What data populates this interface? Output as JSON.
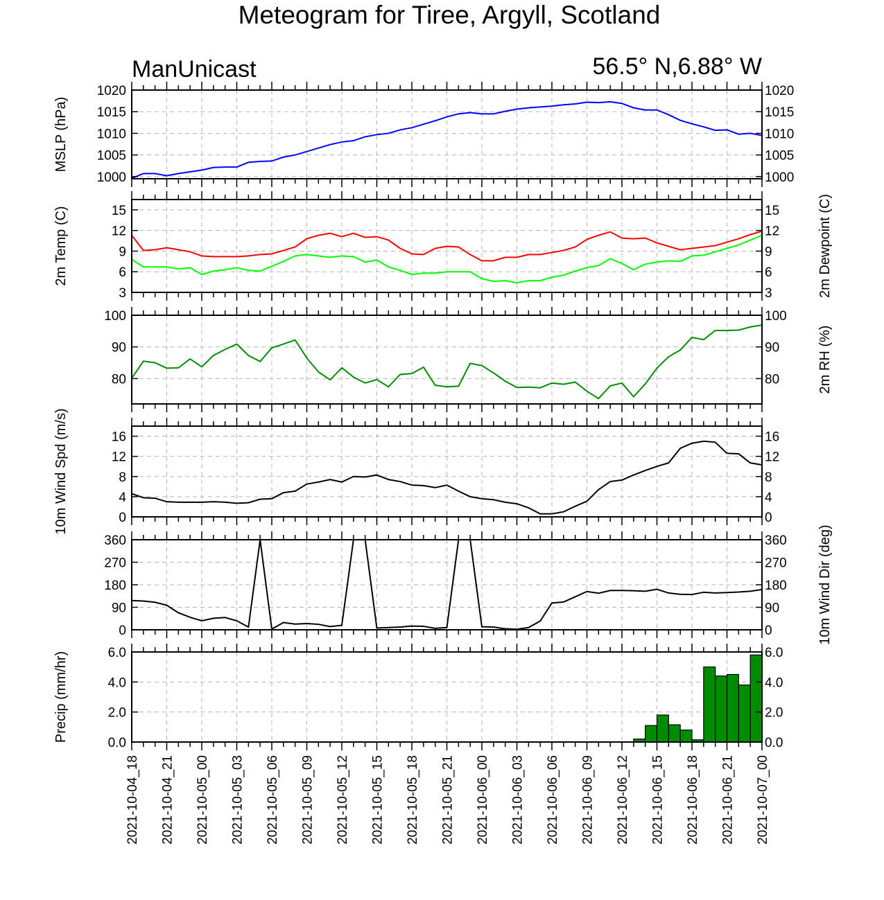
{
  "title": "Meteogram for Tiree, Argyll, Scotland",
  "model": "ManUnicast",
  "location": "56.5° N,6.88° W",
  "colors": {
    "mslp": "#0000ff",
    "temp": "#ff0000",
    "dewpoint": "#00ff00",
    "rh": "#008c00",
    "wind": "#000000",
    "precip": "#008c00"
  },
  "chart_data": {
    "type": "line",
    "x": [
      "2021-10-04_18",
      "2021-10-04_19",
      "2021-10-04_20",
      "2021-10-04_21",
      "2021-10-04_22",
      "2021-10-04_23",
      "2021-10-05_00",
      "2021-10-05_01",
      "2021-10-05_02",
      "2021-10-05_03",
      "2021-10-05_04",
      "2021-10-05_05",
      "2021-10-05_06",
      "2021-10-05_07",
      "2021-10-05_08",
      "2021-10-05_09",
      "2021-10-05_10",
      "2021-10-05_11",
      "2021-10-05_12",
      "2021-10-05_13",
      "2021-10-05_14",
      "2021-10-05_15",
      "2021-10-05_16",
      "2021-10-05_17",
      "2021-10-05_18",
      "2021-10-05_19",
      "2021-10-05_20",
      "2021-10-05_21",
      "2021-10-05_22",
      "2021-10-05_23",
      "2021-10-06_00",
      "2021-10-06_01",
      "2021-10-06_02",
      "2021-10-06_03",
      "2021-10-06_04",
      "2021-10-06_05",
      "2021-10-06_06",
      "2021-10-06_07",
      "2021-10-06_08",
      "2021-10-06_09",
      "2021-10-06_10",
      "2021-10-06_11",
      "2021-10-06_12",
      "2021-10-06_13",
      "2021-10-06_14",
      "2021-10-06_15",
      "2021-10-06_16",
      "2021-10-06_17",
      "2021-10-06_18",
      "2021-10-06_19",
      "2021-10-06_20",
      "2021-10-06_21",
      "2021-10-06_22",
      "2021-10-06_23",
      "2021-10-07_00"
    ],
    "x_tick_labels": [
      "2021-10-04_18",
      "2021-10-04_21",
      "2021-10-05_00",
      "2021-10-05_03",
      "2021-10-05_06",
      "2021-10-05_09",
      "2021-10-05_12",
      "2021-10-05_15",
      "2021-10-05_18",
      "2021-10-05_21",
      "2021-10-06_00",
      "2021-10-06_03",
      "2021-10-06_06",
      "2021-10-06_09",
      "2021-10-06_12",
      "2021-10-06_15",
      "2021-10-06_18",
      "2021-10-06_21",
      "2021-10-07_00"
    ],
    "panels": [
      {
        "id": "mslp",
        "ylabel": "MSLP (hPa)",
        "ylabel_right": "",
        "ylim": [
          999.5,
          1020
        ],
        "ticks": [
          1000,
          1005,
          1010,
          1015,
          1020
        ],
        "tick_labels": [
          "1000",
          "1005",
          "1010",
          "1015",
          "1020"
        ],
        "right_tick_labels": true,
        "series": [
          {
            "color": "#0000ff",
            "values": [
              999.6,
              1000.7,
              1000.7,
              1000.2,
              1000.7,
              1001.1,
              1001.5,
              1002.1,
              1002.2,
              1002.2,
              1003.3,
              1003.5,
              1003.6,
              1004.5,
              1005.0,
              1005.8,
              1006.6,
              1007.4,
              1008.0,
              1008.3,
              1009.2,
              1009.7,
              1010.0,
              1010.8,
              1011.3,
              1012.1,
              1012.9,
              1013.8,
              1014.5,
              1014.8,
              1014.5,
              1014.5,
              1015.1,
              1015.6,
              1015.9,
              1016.1,
              1016.3,
              1016.6,
              1016.8,
              1017.2,
              1017.1,
              1017.3,
              1016.9,
              1015.9,
              1015.4,
              1015.4,
              1014.3,
              1013.0,
              1012.2,
              1011.5,
              1010.7,
              1010.8,
              1009.8,
              1010.0,
              1009.5
            ]
          }
        ],
        "kind": "line"
      },
      {
        "id": "temp",
        "ylabel": "2m Temp (C)",
        "ylabel_right": "2m Dewpoint (C)",
        "ylim": [
          3,
          16.5
        ],
        "ticks": [
          3,
          6,
          9,
          12,
          15
        ],
        "tick_labels": [
          "3",
          "6",
          "9",
          "12",
          "15"
        ],
        "right_tick_labels": true,
        "series": [
          {
            "color": "#ff0000",
            "values": [
              11.3,
              9.1,
              9.2,
              9.5,
              9.2,
              8.9,
              8.3,
              8.2,
              8.2,
              8.2,
              8.3,
              8.5,
              8.6,
              9.1,
              9.6,
              10.8,
              11.3,
              11.6,
              11.1,
              11.6,
              11.0,
              11.1,
              10.6,
              9.4,
              8.6,
              8.5,
              9.4,
              9.7,
              9.6,
              8.5,
              7.6,
              7.6,
              8.1,
              8.1,
              8.5,
              8.5,
              8.8,
              9.1,
              9.6,
              10.7,
              11.3,
              11.8,
              10.9,
              10.8,
              10.9,
              10.2,
              9.7,
              9.2,
              9.4,
              9.6,
              9.8,
              10.3,
              10.8,
              11.4,
              11.9
            ]
          },
          {
            "color": "#00ff00",
            "values": [
              7.8,
              6.7,
              6.7,
              6.7,
              6.4,
              6.6,
              5.6,
              6.1,
              6.3,
              6.6,
              6.2,
              6.1,
              6.8,
              7.5,
              8.3,
              8.5,
              8.3,
              8.1,
              8.3,
              8.2,
              7.4,
              7.7,
              6.7,
              6.2,
              5.6,
              5.8,
              5.8,
              6.0,
              6.0,
              6.0,
              5.0,
              4.6,
              4.7,
              4.4,
              4.7,
              4.7,
              5.2,
              5.5,
              6.1,
              6.6,
              6.9,
              7.9,
              7.2,
              6.3,
              7.1,
              7.4,
              7.6,
              7.5,
              8.3,
              8.4,
              8.9,
              9.4,
              9.9,
              10.6,
              11.3
            ]
          }
        ],
        "kind": "line"
      },
      {
        "id": "rh",
        "ylabel": "",
        "ylabel_right": "2m RH (%)",
        "ylim": [
          72,
          100
        ],
        "ticks": [
          80,
          90,
          100
        ],
        "tick_labels": [
          "80",
          "90",
          "100"
        ],
        "right_tick_labels": true,
        "series": [
          {
            "color": "#008c00",
            "values": [
              80.1,
              85.5,
              85.0,
              83.3,
              83.4,
              86.2,
              83.7,
              87.3,
              89.2,
              90.9,
              87.3,
              85.4,
              89.7,
              90.9,
              92.2,
              86.5,
              82.1,
              79.6,
              83.4,
              80.5,
              78.6,
              79.7,
              77.4,
              81.3,
              81.6,
              83.6,
              77.9,
              77.4,
              77.6,
              84.8,
              84.1,
              81.8,
              79.2,
              77.2,
              77.3,
              77.1,
              78.6,
              78.2,
              78.9,
              76.0,
              73.7,
              77.7,
              78.6,
              74.3,
              78.3,
              83.3,
              86.9,
              89.0,
              93.0,
              92.3,
              95.2,
              95.2,
              95.3,
              96.3,
              96.9
            ]
          }
        ],
        "kind": "line"
      },
      {
        "id": "windspd",
        "ylabel": "10m Wind Spd (m/s)",
        "ylabel_right": "",
        "ylim": [
          0,
          18
        ],
        "ticks": [
          0,
          4,
          8,
          12,
          16
        ],
        "tick_labels": [
          "0",
          "4",
          "8",
          "12",
          "16"
        ],
        "right_tick_labels": true,
        "series": [
          {
            "color": "#000000",
            "values": [
              4.6,
              3.8,
              3.7,
              3.0,
              2.9,
              2.9,
              2.9,
              3.0,
              2.9,
              2.7,
              2.8,
              3.5,
              3.6,
              4.8,
              5.1,
              6.5,
              6.9,
              7.4,
              6.9,
              8.0,
              7.9,
              8.3,
              7.4,
              7.0,
              6.3,
              6.2,
              5.8,
              6.3,
              5.1,
              4.0,
              3.6,
              3.4,
              2.9,
              2.6,
              1.8,
              0.6,
              0.6,
              1.0,
              2.1,
              3.1,
              5.4,
              7.0,
              7.3,
              8.3,
              9.2,
              10.0,
              10.7,
              13.6,
              14.6,
              15.0,
              14.8,
              12.6,
              12.5,
              10.7,
              10.3
            ]
          }
        ],
        "kind": "line"
      },
      {
        "id": "winddir",
        "ylabel": "",
        "ylabel_right": "10m Wind Dir (deg)",
        "ylim": [
          0,
          360
        ],
        "ticks": [
          0,
          90,
          180,
          270,
          360
        ],
        "tick_labels": [
          "0",
          "90",
          "180",
          "270",
          "360"
        ],
        "right_tick_labels": true,
        "series": [
          {
            "color": "#000000",
            "values": [
              117,
              115,
              110,
              98,
              68,
              50,
              36,
              46,
              49,
              36,
              11,
              360,
              3,
              29,
              23,
              25,
              22,
              13,
              18,
              360,
              360,
              7,
              9,
              11,
              15,
              14,
              6,
              9,
              360,
              360,
              12,
              11,
              4,
              2,
              9,
              35,
              107,
              111,
              132,
              153,
              146,
              157,
              157,
              156,
              154,
              162,
              147,
              142,
              141,
              150,
              147,
              149,
              151,
              154,
              161
            ]
          }
        ],
        "kind": "line"
      },
      {
        "id": "precip",
        "ylabel": "Precip (mm/hr)",
        "ylabel_right": "",
        "ylim": [
          0,
          6
        ],
        "ticks": [
          0,
          2,
          4,
          6
        ],
        "tick_labels": [
          "0.0",
          "2.0",
          "4.0",
          "6.0"
        ],
        "right_tick_labels": true,
        "series": [
          {
            "color": "#008c00",
            "values": [
              0,
              0,
              0,
              0,
              0,
              0,
              0,
              0,
              0,
              0,
              0,
              0,
              0,
              0,
              0,
              0,
              0,
              0,
              0,
              0,
              0,
              0,
              0,
              0,
              0,
              0,
              0,
              0,
              0,
              0,
              0,
              0,
              0,
              0,
              0,
              0,
              0,
              0,
              0,
              0,
              0,
              0,
              0,
              0.2,
              1.1,
              1.8,
              1.15,
              0.8,
              0.15,
              5.0,
              4.4,
              4.5,
              3.8,
              5.8,
              0
            ]
          }
        ],
        "kind": "bar"
      }
    ]
  }
}
